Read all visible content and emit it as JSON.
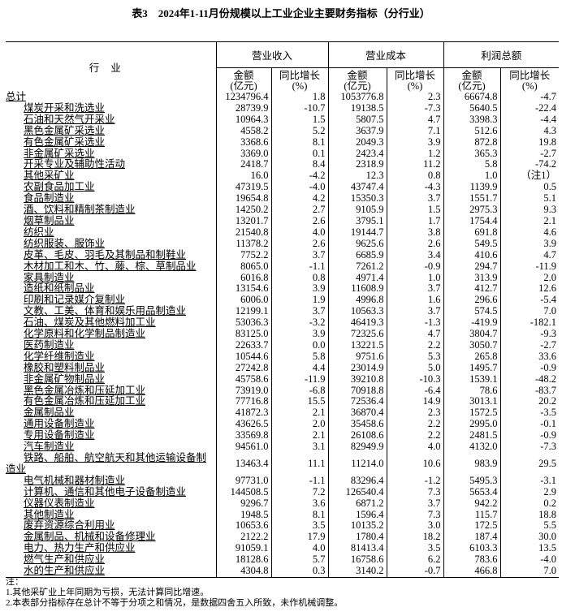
{
  "title": "表3　2024年1-11月份规模以上工业企业主要财务指标（分行业）",
  "header": {
    "industry": "行业",
    "groups": [
      "营业收入",
      "营业成本",
      "利润总额"
    ],
    "amount": "金额\n(亿元)",
    "growth": "同比增长\n(%)"
  },
  "rows": [
    [
      "总计",
      "1234796.4",
      "1.8",
      "1053776.8",
      "2.3",
      "66674.8",
      "-4.7"
    ],
    [
      "煤炭开采和洗选业",
      "28739.9",
      "-10.7",
      "19138.5",
      "-7.3",
      "5640.5",
      "-22.4"
    ],
    [
      "石油和天然气开采业",
      "10964.3",
      "1.5",
      "5807.5",
      "4.7",
      "3398.3",
      "-4.4"
    ],
    [
      "黑色金属矿采选业",
      "4558.2",
      "5.2",
      "3637.9",
      "7.1",
      "512.6",
      "4.3"
    ],
    [
      "有色金属矿采选业",
      "3368.6",
      "8.1",
      "2049.3",
      "3.9",
      "872.8",
      "19.8"
    ],
    [
      "非金属矿采选业",
      "3369.0",
      "0.1",
      "2423.4",
      "1.2",
      "365.3",
      "-2.7"
    ],
    [
      "开采专业及辅助性活动",
      "2418.7",
      "8.4",
      "2318.9",
      "11.2",
      "5.8",
      "-74.2"
    ],
    [
      "其他采矿业",
      "16.0",
      "-4.2",
      "12.3",
      "0.8",
      "1.0",
      "（注1）"
    ],
    [
      "农副食品加工业",
      "47319.5",
      "-4.0",
      "43747.4",
      "-4.3",
      "1139.9",
      "0.5"
    ],
    [
      "食品制造业",
      "19654.8",
      "4.2",
      "15350.3",
      "3.7",
      "1551.7",
      "5.1"
    ],
    [
      "酒、饮料和精制茶制造业",
      "14250.2",
      "2.7",
      "9105.9",
      "1.5",
      "2975.3",
      "9.3"
    ],
    [
      "烟草制品业",
      "13201.7",
      "2.6",
      "3795.1",
      "1.7",
      "1754.4",
      "2.1"
    ],
    [
      "纺织业",
      "21540.8",
      "4.0",
      "19144.7",
      "3.8",
      "691.8",
      "4.6"
    ],
    [
      "纺织服装、服饰业",
      "11378.2",
      "2.6",
      "9625.6",
      "2.6",
      "549.5",
      "3.9"
    ],
    [
      "皮革、毛皮、羽毛及其制品和制鞋业",
      "7752.2",
      "3.7",
      "6685.9",
      "3.4",
      "410.6",
      "4.7"
    ],
    [
      "木材加工和木、竹、藤、棕、草制品业",
      "8065.0",
      "-1.1",
      "7261.2",
      "-0.9",
      "294.7",
      "-11.9"
    ],
    [
      "家具制造业",
      "6016.8",
      "0.8",
      "4971.4",
      "1.0",
      "313.9",
      "2.0"
    ],
    [
      "造纸和纸制品业",
      "13154.6",
      "3.9",
      "11608.9",
      "3.7",
      "412.7",
      "12.6"
    ],
    [
      "印刷和记录媒介复制业",
      "6006.0",
      "1.9",
      "4996.8",
      "1.6",
      "296.6",
      "-5.4"
    ],
    [
      "文教、工美、体育和娱乐用品制造业",
      "12199.1",
      "3.7",
      "10563.3",
      "3.7",
      "574.5",
      "7.0"
    ],
    [
      "石油、煤炭及其他燃料加工业",
      "53036.3",
      "-3.2",
      "46419.3",
      "-1.3",
      "-419.9",
      "-182.1"
    ],
    [
      "化学原料和化学制品制造业",
      "83125.0",
      "3.9",
      "72325.6",
      "4.7",
      "3804.7",
      "-9.3"
    ],
    [
      "医药制造业",
      "22633.7",
      "0.0",
      "13221.5",
      "2.2",
      "3050.7",
      "-2.7"
    ],
    [
      "化学纤维制造业",
      "10544.6",
      "5.8",
      "9751.6",
      "5.3",
      "265.8",
      "33.6"
    ],
    [
      "橡胶和塑料制品业",
      "27242.8",
      "4.4",
      "23014.9",
      "5.0",
      "1495.7",
      "-0.9"
    ],
    [
      "非金属矿物制品业",
      "45758.6",
      "-11.9",
      "39210.8",
      "-10.3",
      "1539.1",
      "-48.2"
    ],
    [
      "黑色金属冶炼和压延加工业",
      "73919.0",
      "-6.8",
      "70918.8",
      "-6.4",
      "78.6",
      "-83.7"
    ],
    [
      "有色金属冶炼和压延加工业",
      "77716.8",
      "15.5",
      "72536.4",
      "14.9",
      "3013.1",
      "20.2"
    ],
    [
      "金属制品业",
      "41872.3",
      "2.1",
      "36870.4",
      "2.3",
      "1572.5",
      "-3.5"
    ],
    [
      "通用设备制造业",
      "43626.5",
      "2.0",
      "35458.6",
      "2.2",
      "2995.0",
      "-0.1"
    ],
    [
      "专用设备制造业",
      "33569.8",
      "2.1",
      "26108.6",
      "2.2",
      "2481.5",
      "-0.9"
    ],
    [
      "汽车制造业",
      "94561.0",
      "3.1",
      "82949.9",
      "4.0",
      "4132.0",
      "-7.3"
    ],
    [
      "铁路、船舶、航空航天和其他运输设备制造业",
      "13463.4",
      "11.1",
      "11214.0",
      "10.6",
      "983.9",
      "29.5"
    ],
    [
      "电气机械和器材制造业",
      "97731.0",
      "-1.1",
      "83296.4",
      "-1.2",
      "5495.3",
      "-3.1"
    ],
    [
      "计算机、通信和其他电子设备制造业",
      "144508.5",
      "7.2",
      "126540.4",
      "7.3",
      "5653.4",
      "2.9"
    ],
    [
      "仪器仪表制造业",
      "9296.7",
      "3.6",
      "6871.2",
      "3.7",
      "942.2",
      "0.2"
    ],
    [
      "其他制造业",
      "1948.5",
      "8.1",
      "1596.4",
      "7.3",
      "115.7",
      "18.8"
    ],
    [
      "废弃资源综合利用业",
      "10653.6",
      "3.5",
      "10135.2",
      "3.0",
      "172.5",
      "5.5"
    ],
    [
      "金属制品、机械和设备修理业",
      "2122.2",
      "17.9",
      "1780.4",
      "18.2",
      "187.4",
      "30.0"
    ],
    [
      "电力、热力生产和供应业",
      "91059.1",
      "4.0",
      "81413.4",
      "3.5",
      "6103.3",
      "13.5"
    ],
    [
      "燃气生产和供应业",
      "18128.6",
      "5.7",
      "16758.6",
      "6.2",
      "783.6",
      "-4.0"
    ],
    [
      "水的生产和供应业",
      "4304.8",
      "0.3",
      "3140.2",
      "-0.7",
      "466.8",
      "7.0"
    ]
  ],
  "notes": [
    "注：",
    "1.其他采矿业上年同期为亏损，无法计算同比增速。",
    "2.本表部分指标存在总计不等于分项之和情况，是数据四舍五入所致，未作机械调整。"
  ]
}
